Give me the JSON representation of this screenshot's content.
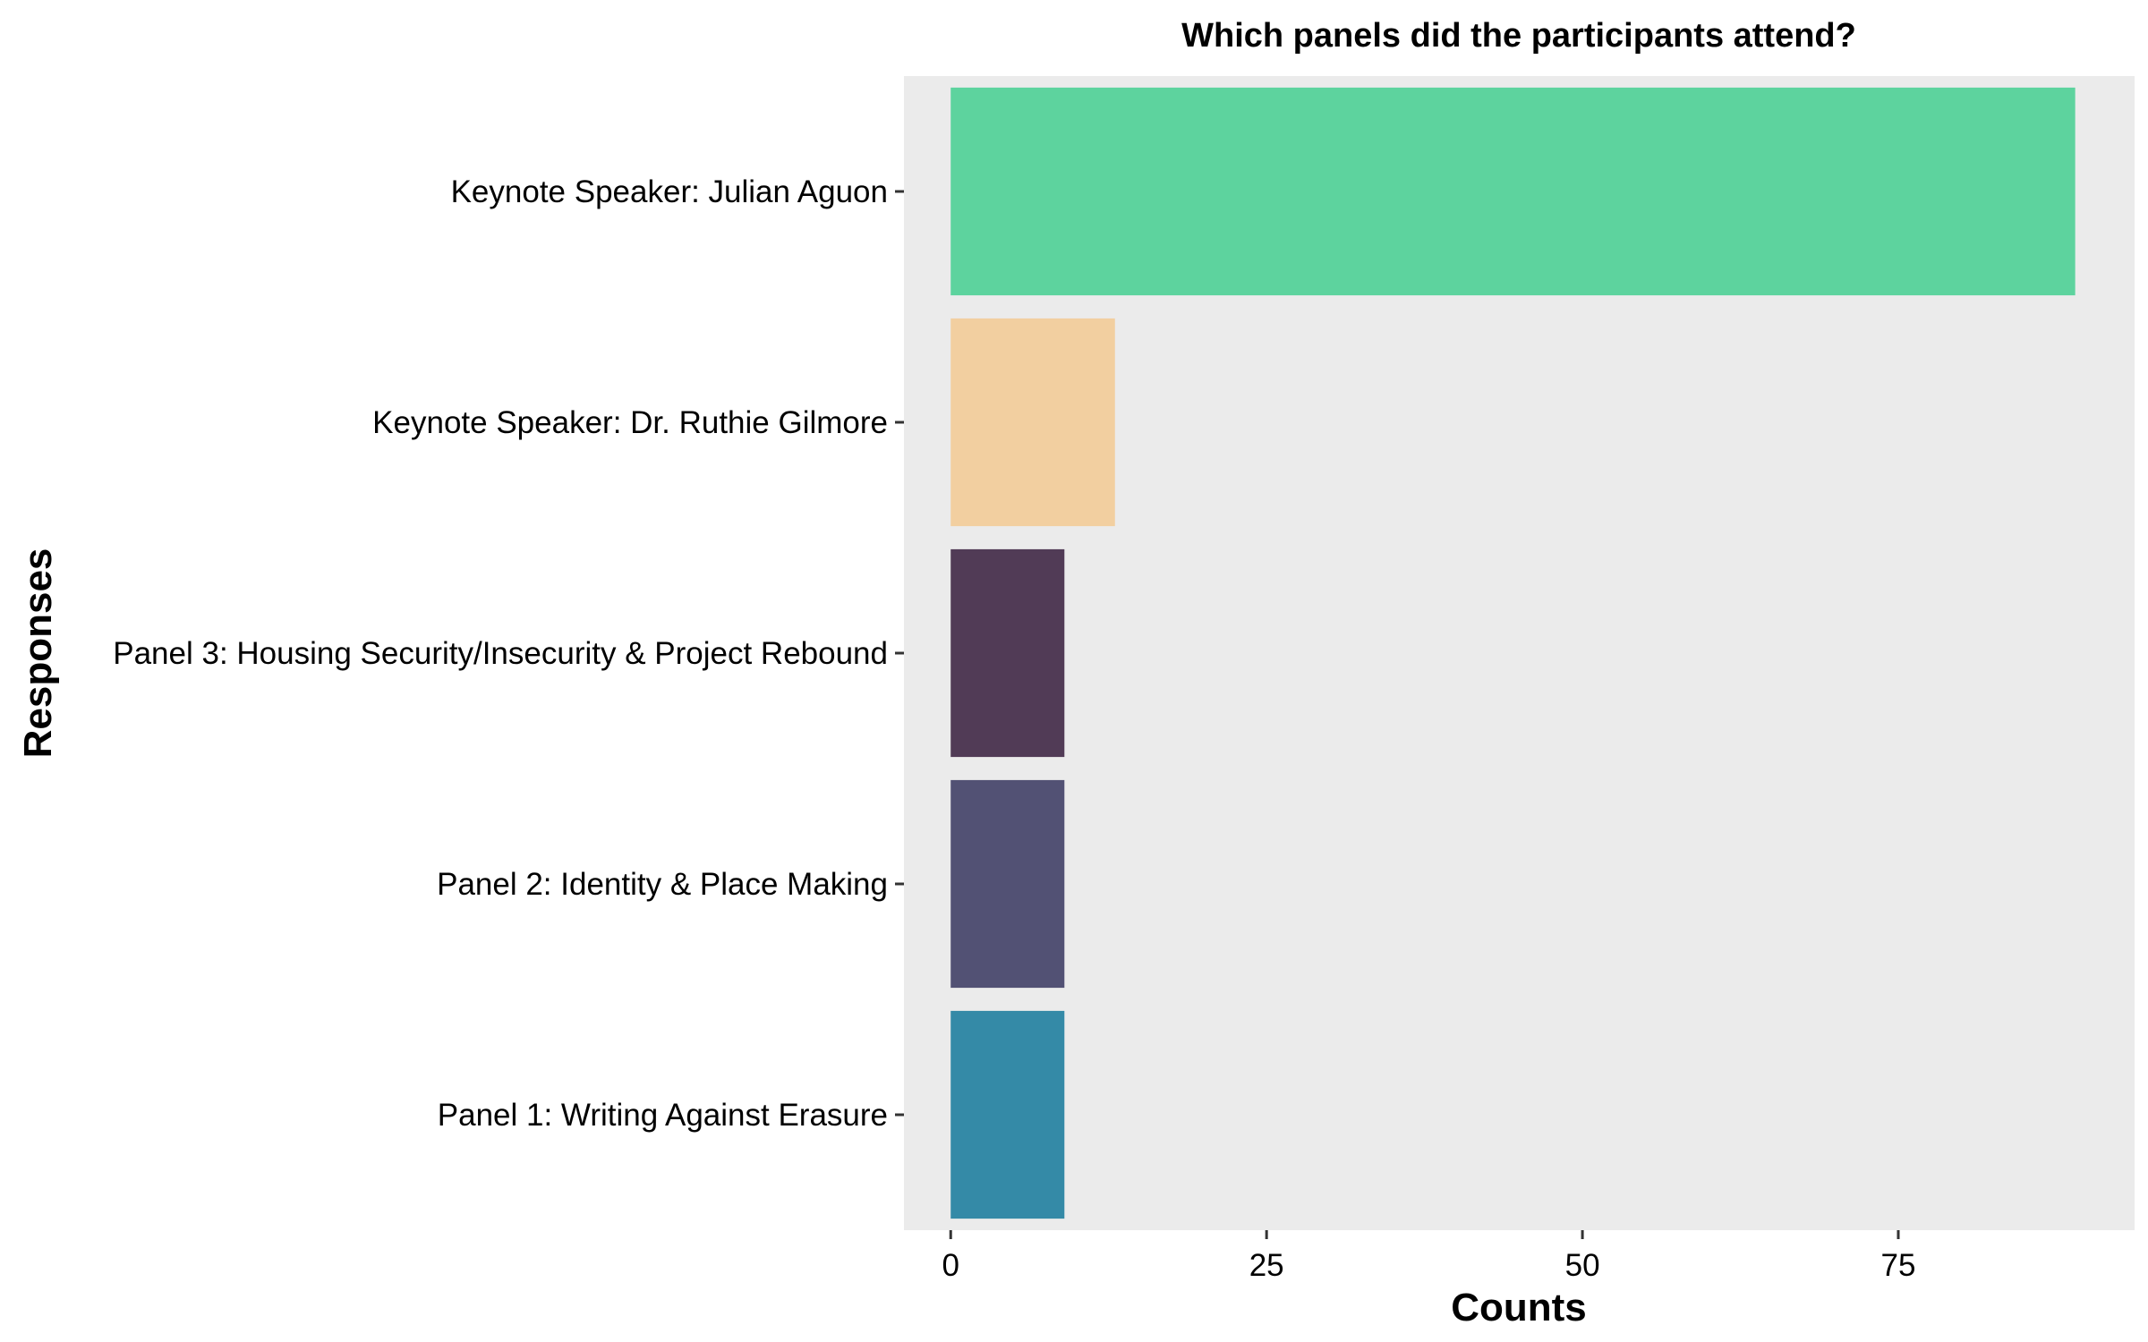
{
  "chart_data": {
    "type": "bar",
    "orientation": "horizontal",
    "title": "Which panels did the participants attend?",
    "xlabel": "Counts",
    "ylabel": "Responses",
    "categories": [
      "Keynote Speaker: Julian Aguon",
      "Keynote Speaker: Dr. Ruthie Gilmore",
      "Panel 3: Housing Security/Insecurity & Project Rebound",
      "Panel 2: Identity & Place Making",
      "Panel 1: Writing Against Erasure"
    ],
    "values": [
      89,
      13,
      9,
      9,
      9
    ],
    "colors": [
      "#5dd39e",
      "#f2cfa0",
      "#513b56",
      "#525174",
      "#348aa7"
    ],
    "xlim": [
      -3.7,
      93.7
    ],
    "xticks": [
      0,
      25,
      50,
      75
    ],
    "xtick_labels": [
      "0",
      "25",
      "50",
      "75"
    ],
    "grid": false,
    "panel_background": "#ebebeb",
    "legend": "none"
  }
}
